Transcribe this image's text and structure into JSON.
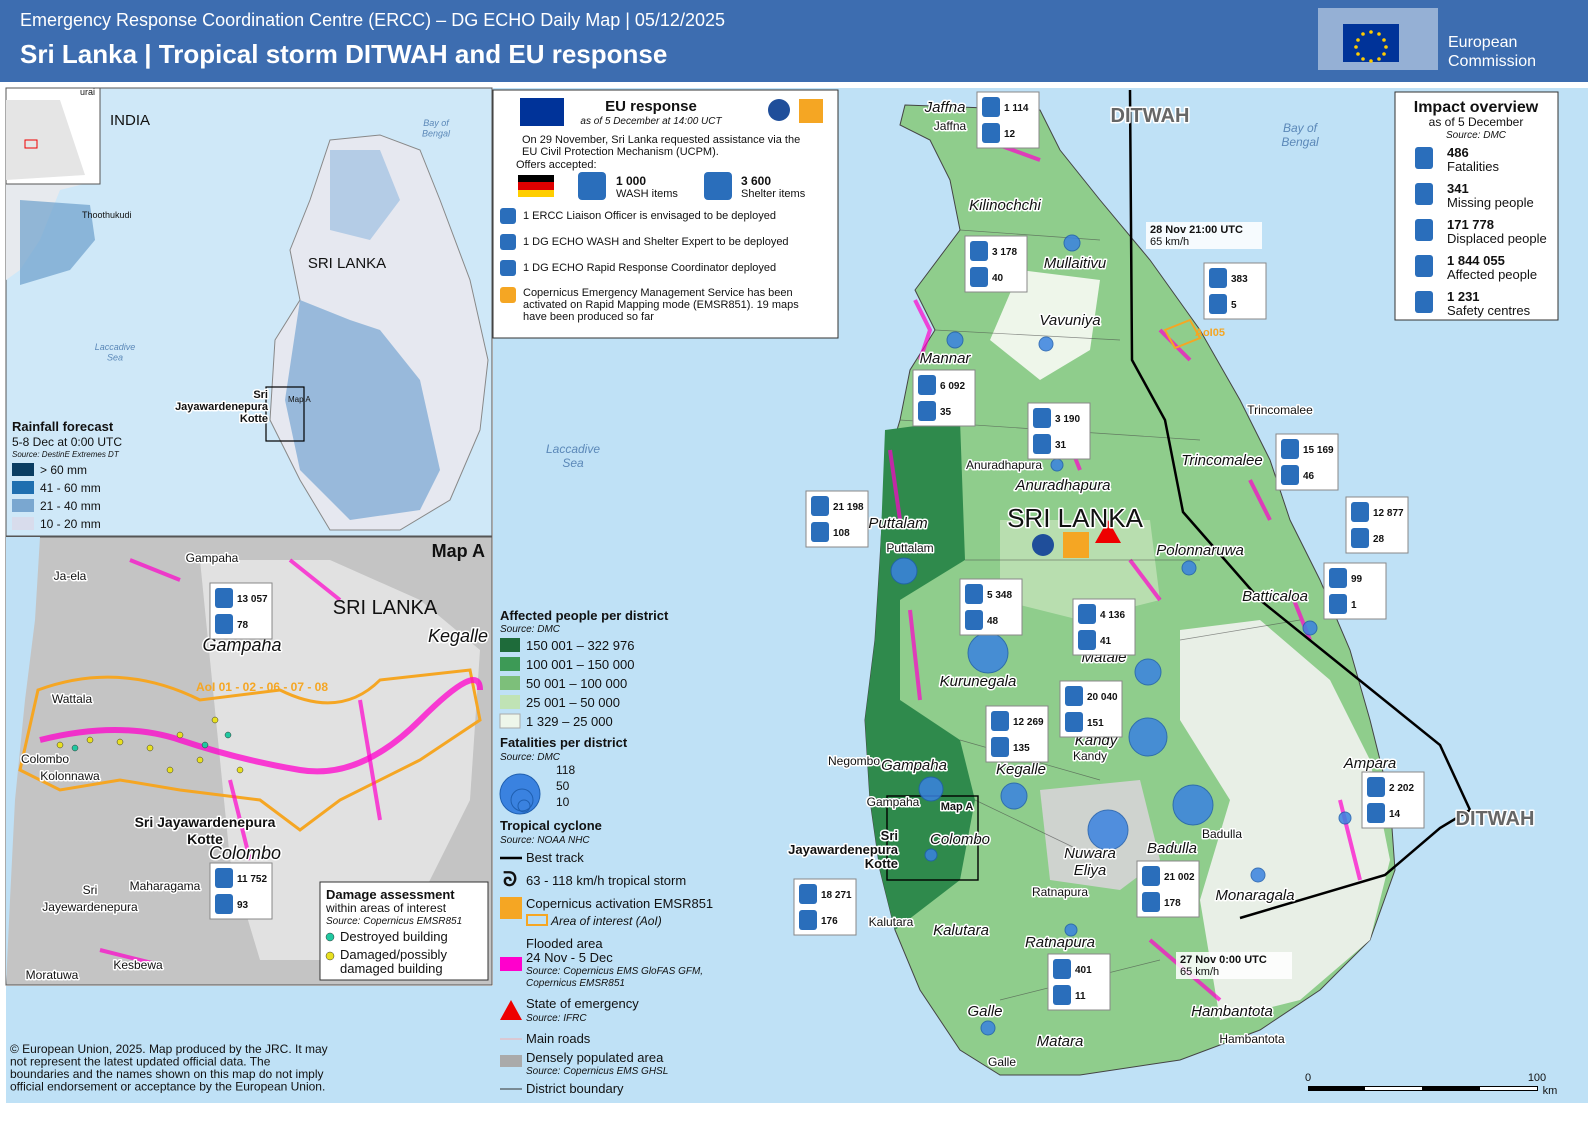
{
  "header": {
    "subtitle": "Emergency Response Coordination Centre (ERCC) – DG ECHO Daily Map | 05/12/2025",
    "title": "Sri Lanka | Tropical storm DITWAH and EU response",
    "logo": [
      "European",
      "Commission"
    ]
  },
  "inset": {
    "labels": [
      "urai",
      "INDIA",
      "Thoothukudi",
      "SRI LANKA"
    ],
    "bay": [
      "Bay of",
      "Bengal"
    ],
    "sea": [
      "Laccadive",
      "Sea"
    ],
    "capital": [
      "Sri",
      "Jayawardenepura",
      "Kotte"
    ],
    "map_a": "Map A",
    "legend": {
      "title": "Rainfall forecast",
      "period": "5-8 Dec at 0:00 UTC",
      "source": "Source: DestinE Extremes DT",
      "items": [
        "> 60 mm",
        "41 - 60 mm",
        "21 - 40 mm",
        "10 - 20 mm"
      ]
    }
  },
  "map_a": {
    "title": "Map A",
    "country": "SRI LANKA",
    "places": [
      "Gampaha",
      "Ja-ela",
      "Wattala",
      "Colombo",
      "Kolonnawa",
      "Maharagama",
      "Kesbewa",
      "Moratuwa"
    ],
    "sri_jayewardenepura": [
      "Sri",
      "Jayewardenepura"
    ],
    "districts": [
      "Gampaha",
      "Kegalle",
      "Colombo"
    ],
    "capital": [
      "Sri Jayawardenepura",
      "Kotte"
    ],
    "aoi": "AoI 01 - 02 - 06 - 07 - 08",
    "callouts": [
      {
        "displaced": "13 057",
        "shelters": "78"
      },
      {
        "displaced": "11 752",
        "shelters": "93"
      }
    ],
    "damage": {
      "title": "Damage assessment",
      "subtitle": "within areas of interest",
      "source": "Source: Copernicus EMSR851",
      "items": [
        "Destroyed building",
        [
          "Damaged/possibly",
          "damaged building"
        ]
      ]
    }
  },
  "eu_response": {
    "title": "EU response",
    "subtitle": "as of 5 December at 14:00 UCT",
    "request": [
      "On 29 November, Sri Lanka requested assistance via the",
      "EU Civil Protection Mechanism (UCPM)."
    ],
    "offers": "Offers accepted:",
    "items": [
      {
        "amount": "1 000",
        "label": "WASH items"
      },
      {
        "amount": "3 600",
        "label": "Shelter items"
      }
    ],
    "deployments": [
      "1 ERCC Liaison Officer is envisaged to be deployed",
      "1 DG ECHO WASH and Shelter Expert to be deployed",
      "1 DG ECHO Rapid Response Coordinator deployed"
    ],
    "copernicus": [
      "Copernicus Emergency Management Service has been",
      "activated on Rapid Mapping mode (EMSR851). 19 maps",
      "have been produced so far"
    ]
  },
  "impact": {
    "title": "Impact overview",
    "date": "as of 5 December",
    "source": "Source: DMC",
    "items": [
      {
        "value": "486",
        "label": "Fatalities"
      },
      {
        "value": "341",
        "label": "Missing people"
      },
      {
        "value": "171 778",
        "label": "Displaced people"
      },
      {
        "value": "1 844 055",
        "label": "Affected people"
      },
      {
        "value": "1 231",
        "label": "Safety centres"
      }
    ]
  },
  "legend": {
    "affected": {
      "title": "Affected people per district",
      "source": "Source: DMC",
      "classes": [
        "150 001 – 322 976",
        "100 001 – 150 000",
        "50 001 – 100 000",
        "25 001 – 50 000",
        "1 329 – 25 000"
      ]
    },
    "fatalities": {
      "title": "Fatalities per district",
      "source": "Source: DMC",
      "sizes": [
        "118",
        "50",
        "10"
      ]
    },
    "cyclone": {
      "title": "Tropical cyclone",
      "source": "Source: NOAA NHC",
      "track": "Best track",
      "storm": "63 - 118 km/h tropical storm"
    },
    "copernicus": {
      "title": "Copernicus activation EMSR851",
      "aoi": "Area of interest (AoI)"
    },
    "flood": {
      "title": "Flooded area",
      "period": "24 Nov - 5 Dec",
      "source": [
        "Source: Copernicus EMS GloFAS GFM,",
        "Copernicus EMSR851"
      ]
    },
    "emergency": {
      "title": "State of emergency",
      "source": "Source: IFRC"
    },
    "roads": "Main roads",
    "dense": {
      "title": "Densely populated area",
      "source": "Source: Copernicus EMS GHSL"
    },
    "boundary": "District boundary"
  },
  "main": {
    "storm_name": [
      "DITWAH",
      "DITWAH"
    ],
    "country": "SRI LANKA",
    "bay": [
      "Bay of",
      "Bengal"
    ],
    "sea": [
      "Laccadive",
      "Sea"
    ],
    "track_points": [
      {
        "time": "28 Nov 21:00 UTC",
        "speed": "65 km/h"
      },
      {
        "time": "27 Nov 0:00 UTC",
        "speed": "65 km/h"
      }
    ],
    "aoi": "AoI05",
    "map_a": "Map A",
    "districts": [
      "Jaffna",
      "Kilinochchi",
      "Mullaitivu",
      "Vavuniya",
      "Mannar",
      "Trincomalee",
      "Anuradhapura",
      "Puttalam",
      "Polonnaruwa",
      "Batticaloa",
      "Kurunegala",
      "Matale",
      "Kandy",
      "Gampaha",
      "Kegalle",
      "Ampara",
      "Colombo",
      [
        "Nuwara",
        "Eliya"
      ],
      "Badulla",
      "Monaragala",
      "Kalutara",
      "Ratnapura",
      "Galle",
      "Matara",
      "Hambantota"
    ],
    "cities": [
      "Jaffna",
      "Trincomalee",
      "Anuradhapura",
      "Puttalam",
      "Negombo",
      "Kandy",
      "Gampaha",
      "Badulla",
      "Ratnapura",
      "Kalutara",
      "Galle",
      "Hambantota"
    ],
    "capital": [
      "Sri",
      "Jayawardenepura",
      "Kotte"
    ],
    "scale": [
      "0",
      "100",
      "km"
    ],
    "callouts": [
      {
        "displaced": "1 114",
        "shelters": "12"
      },
      {
        "displaced": "3 178",
        "shelters": "40"
      },
      {
        "displaced": "383",
        "shelters": "5"
      },
      {
        "displaced": "6 092",
        "shelters": "35"
      },
      {
        "displaced": "3 190",
        "shelters": "31"
      },
      {
        "displaced": "15 169",
        "shelters": "46"
      },
      {
        "displaced": "21 198",
        "shelters": "108"
      },
      {
        "displaced": "12 877",
        "shelters": "28"
      },
      {
        "displaced": "99",
        "shelters": "1"
      },
      {
        "displaced": "5 348",
        "shelters": "48"
      },
      {
        "displaced": "4 136",
        "shelters": "41"
      },
      {
        "displaced": "20 040",
        "shelters": "151"
      },
      {
        "displaced": "12 269",
        "shelters": "135"
      },
      {
        "displaced": "2 202",
        "shelters": "14"
      },
      {
        "displaced": "21 002",
        "shelters": "178"
      },
      {
        "displaced": "18 271",
        "shelters": "176"
      },
      {
        "displaced": "401",
        "shelters": "11"
      }
    ]
  },
  "disclaimer": [
    "© European Union, 2025. Map produced by the JRC. It may",
    "not represent the latest updated official data. The",
    "boundaries and the names shown on this map do not imply",
    "official endorsement or acceptance by the European Union."
  ]
}
